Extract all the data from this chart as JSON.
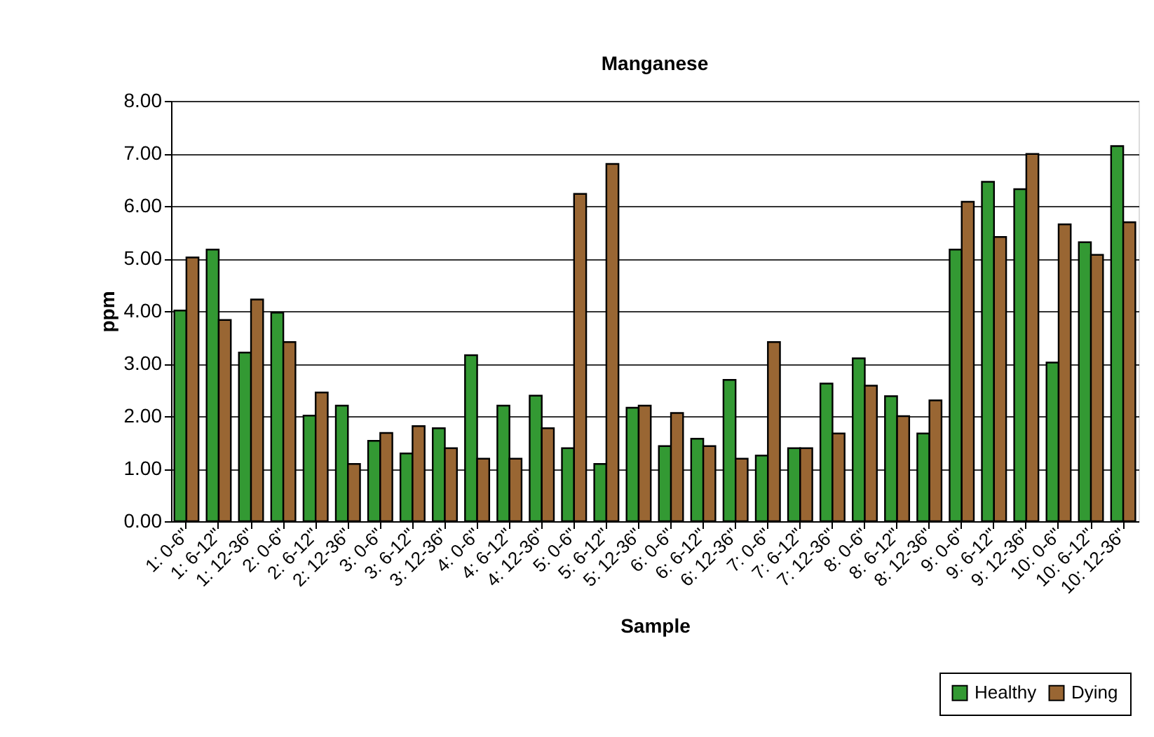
{
  "chart_data": {
    "type": "bar",
    "title": "Manganese",
    "xlabel": "Sample",
    "ylabel": "ppm",
    "categories": [
      "1: 0-6\"",
      "1: 6-12\"",
      "1: 12-36\"",
      "2: 0-6\"",
      "2: 6-12\"",
      "2: 12-36\"",
      "3: 0-6\"",
      "3: 6-12\"",
      "3: 12-36\"",
      "4: 0-6\"",
      "4: 6-12\"",
      "4: 12-36\"",
      "5: 0-6\"",
      "5: 6-12\"",
      "5: 12-36\"",
      "6: 0-6\"",
      "6: 6-12\"",
      "6: 12-36\"",
      "7: 0-6\"",
      "7: 6-12\"",
      "7: 12-36\"",
      "8: 0-6\"",
      "8: 6-12\"",
      "8: 12-36\"",
      "9: 0-6\"",
      "9: 6-12\"",
      "9: 12-36\"",
      "10: 0-6\"",
      "10: 6-12\"",
      "10: 12-36\""
    ],
    "series": [
      {
        "name": "Healthy",
        "color": "#339933",
        "values": [
          4.01,
          5.17,
          3.21,
          3.97,
          2.01,
          2.2,
          1.53,
          1.29,
          1.77,
          3.16,
          2.2,
          2.39,
          1.39,
          1.09,
          2.16,
          1.43,
          1.57,
          2.69,
          1.25,
          1.39,
          2.62,
          3.1,
          2.38,
          1.67,
          5.17,
          6.46,
          6.32,
          3.02,
          5.31,
          7.14
        ]
      },
      {
        "name": "Dying",
        "color": "#996633",
        "values": [
          5.02,
          3.83,
          4.22,
          3.41,
          2.45,
          1.09,
          1.68,
          1.81,
          1.39,
          1.19,
          1.19,
          1.77,
          6.23,
          6.8,
          2.2,
          2.06,
          1.43,
          1.19,
          3.41,
          1.39,
          1.67,
          2.58,
          2.0,
          2.3,
          6.08,
          5.41,
          6.99,
          5.65,
          5.07,
          5.69
        ]
      }
    ],
    "ylim": [
      0,
      8
    ],
    "yticks": [
      {
        "value": 0,
        "label": "0.00"
      },
      {
        "value": 1,
        "label": "1.00"
      },
      {
        "value": 2,
        "label": "2.00"
      },
      {
        "value": 3,
        "label": "3.00"
      },
      {
        "value": 4,
        "label": "4.00"
      },
      {
        "value": 5,
        "label": "5.00"
      },
      {
        "value": 6,
        "label": "6.00"
      },
      {
        "value": 7,
        "label": "7.00"
      },
      {
        "value": 8,
        "label": "8.00"
      }
    ],
    "grid": "y",
    "legend": "bottom right"
  }
}
